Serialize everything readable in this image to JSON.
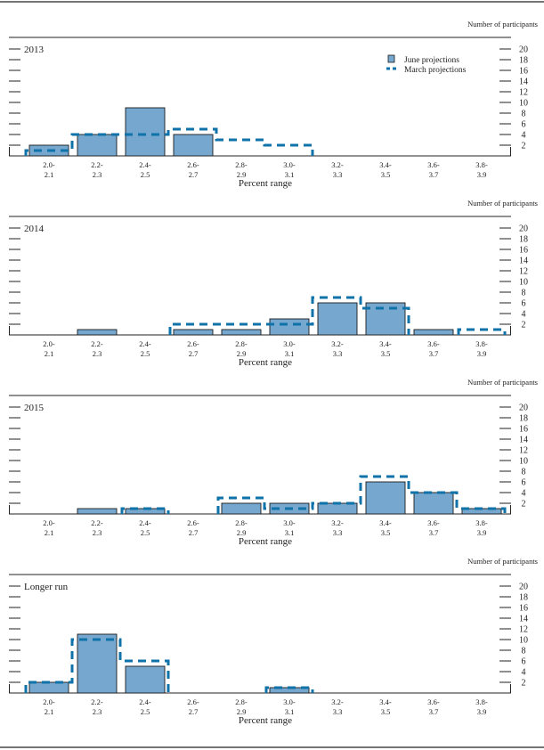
{
  "chart_data": [
    {
      "type": "bar",
      "title": "2013",
      "categories": [
        "2.0-2.1",
        "2.2-2.3",
        "2.4-2.5",
        "2.6-2.7",
        "2.8-2.9",
        "3.0-3.1",
        "3.2-3.3",
        "3.4-3.5",
        "3.6-3.7",
        "3.8-3.9"
      ],
      "category_lines": [
        [
          "2.0-",
          "2.1"
        ],
        [
          "2.2-",
          "2.3"
        ],
        [
          "2.4-",
          "2.5"
        ],
        [
          "2.6-",
          "2.7"
        ],
        [
          "2.8-",
          "2.9"
        ],
        [
          "3.0-",
          "3.1"
        ],
        [
          "3.2-",
          "3.3"
        ],
        [
          "3.4-",
          "3.5"
        ],
        [
          "3.6-",
          "3.7"
        ],
        [
          "3.8-",
          "3.9"
        ]
      ],
      "series": [
        {
          "name": "June projections",
          "style": "bar",
          "values": [
            2,
            4,
            9,
            4,
            0,
            0,
            0,
            0,
            0,
            0
          ]
        },
        {
          "name": "March projections",
          "style": "dashed-step",
          "values": [
            1,
            4,
            4,
            5,
            3,
            2,
            0,
            0,
            0,
            0
          ]
        }
      ],
      "xlabel": "Percent range",
      "ylabel": "Number of participants",
      "ylim": [
        0,
        20
      ],
      "yticks": [
        2,
        4,
        6,
        8,
        10,
        12,
        14,
        16,
        18,
        20
      ],
      "legend": "top-right"
    },
    {
      "type": "bar",
      "title": "2014",
      "categories": [
        "2.0-2.1",
        "2.2-2.3",
        "2.4-2.5",
        "2.6-2.7",
        "2.8-2.9",
        "3.0-3.1",
        "3.2-3.3",
        "3.4-3.5",
        "3.6-3.7",
        "3.8-3.9"
      ],
      "category_lines": [
        [
          "2.0-",
          "2.1"
        ],
        [
          "2.2-",
          "2.3"
        ],
        [
          "2.4-",
          "2.5"
        ],
        [
          "2.6-",
          "2.7"
        ],
        [
          "2.8-",
          "2.9"
        ],
        [
          "3.0-",
          "3.1"
        ],
        [
          "3.2-",
          "3.3"
        ],
        [
          "3.4-",
          "3.5"
        ],
        [
          "3.6-",
          "3.7"
        ],
        [
          "3.8-",
          "3.9"
        ]
      ],
      "series": [
        {
          "name": "June projections",
          "style": "bar",
          "values": [
            0,
            1,
            0,
            1,
            1,
            3,
            6,
            6,
            1,
            0
          ]
        },
        {
          "name": "March projections",
          "style": "dashed-step",
          "values": [
            0,
            0,
            0,
            2,
            2,
            2,
            7,
            5,
            0,
            1
          ]
        }
      ],
      "xlabel": "Percent range",
      "ylabel": "Number of participants",
      "ylim": [
        0,
        20
      ],
      "yticks": [
        2,
        4,
        6,
        8,
        10,
        12,
        14,
        16,
        18,
        20
      ]
    },
    {
      "type": "bar",
      "title": "2015",
      "categories": [
        "2.0-2.1",
        "2.2-2.3",
        "2.4-2.5",
        "2.6-2.7",
        "2.8-2.9",
        "3.0-3.1",
        "3.2-3.3",
        "3.4-3.5",
        "3.6-3.7",
        "3.8-3.9"
      ],
      "category_lines": [
        [
          "2.0-",
          "2.1"
        ],
        [
          "2.2-",
          "2.3"
        ],
        [
          "2.4-",
          "2.5"
        ],
        [
          "2.6-",
          "2.7"
        ],
        [
          "2.8-",
          "2.9"
        ],
        [
          "3.0-",
          "3.1"
        ],
        [
          "3.2-",
          "3.3"
        ],
        [
          "3.4-",
          "3.5"
        ],
        [
          "3.6-",
          "3.7"
        ],
        [
          "3.8-",
          "3.9"
        ]
      ],
      "series": [
        {
          "name": "June projections",
          "style": "bar",
          "values": [
            0,
            1,
            1,
            0,
            2,
            2,
            2,
            6,
            4,
            1
          ]
        },
        {
          "name": "March projections",
          "style": "dashed-step",
          "values": [
            0,
            0,
            1,
            0,
            3,
            1,
            2,
            7,
            4,
            1
          ]
        }
      ],
      "xlabel": "Percent range",
      "ylabel": "Number of participants",
      "ylim": [
        0,
        20
      ],
      "yticks": [
        2,
        4,
        6,
        8,
        10,
        12,
        14,
        16,
        18,
        20
      ]
    },
    {
      "type": "bar",
      "title": "Longer run",
      "categories": [
        "2.0-2.1",
        "2.2-2.3",
        "2.4-2.5",
        "2.6-2.7",
        "2.8-2.9",
        "3.0-3.1",
        "3.2-3.3",
        "3.4-3.5",
        "3.6-3.7",
        "3.8-3.9"
      ],
      "category_lines": [
        [
          "2.0-",
          "2.1"
        ],
        [
          "2.2-",
          "2.3"
        ],
        [
          "2.4-",
          "2.5"
        ],
        [
          "2.6-",
          "2.7"
        ],
        [
          "2.8-",
          "2.9"
        ],
        [
          "3.0-",
          "3.1"
        ],
        [
          "3.2-",
          "3.3"
        ],
        [
          "3.4-",
          "3.5"
        ],
        [
          "3.6-",
          "3.7"
        ],
        [
          "3.8-",
          "3.9"
        ]
      ],
      "series": [
        {
          "name": "June projections",
          "style": "bar",
          "values": [
            2,
            11,
            5,
            0,
            0,
            1,
            0,
            0,
            0,
            0
          ]
        },
        {
          "name": "March projections",
          "style": "dashed-step",
          "values": [
            2,
            10,
            6,
            0,
            0,
            1,
            0,
            0,
            0,
            0
          ]
        }
      ],
      "xlabel": "Percent range",
      "ylabel": "Number of participants",
      "ylim": [
        0,
        20
      ],
      "yticks": [
        2,
        4,
        6,
        8,
        10,
        12,
        14,
        16,
        18,
        20
      ]
    }
  ],
  "legend": {
    "items": [
      {
        "label": "June projections",
        "icon": "filled-square"
      },
      {
        "label": "March projections",
        "icon": "dashed-line"
      }
    ]
  },
  "colors": {
    "bar_fill": "#76a8cf",
    "bar_stroke": "#1a1a1a",
    "march_line": "#0f72a8",
    "axis": "#222222"
  }
}
